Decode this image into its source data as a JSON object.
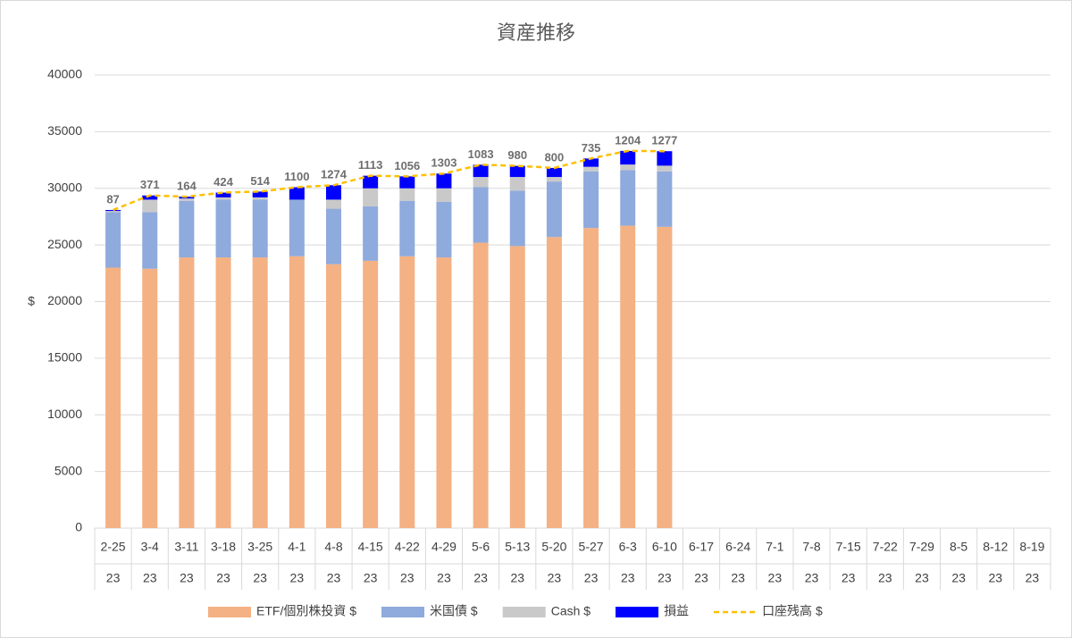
{
  "chart_data": {
    "type": "stacked_bar_line",
    "title": "資産推移",
    "y_label": "$",
    "categories": [
      "2-25",
      "3-4",
      "3-11",
      "3-18",
      "3-25",
      "4-1",
      "4-8",
      "4-15",
      "4-22",
      "4-29",
      "5-6",
      "5-13",
      "5-20",
      "5-27",
      "6-3",
      "6-10",
      "6-17",
      "6-24",
      "7-1",
      "7-8",
      "7-15",
      "7-22",
      "7-29",
      "8-5",
      "8-12",
      "8-19"
    ],
    "category_sublabels": [
      "23",
      "23",
      "23",
      "23",
      "23",
      "23",
      "23",
      "23",
      "23",
      "23",
      "23",
      "23",
      "23",
      "23",
      "23",
      "23",
      "23",
      "23",
      "23",
      "23",
      "23",
      "23",
      "23",
      "23",
      "23",
      "23"
    ],
    "ylim": [
      0,
      40000
    ],
    "yticks": [
      0,
      5000,
      10000,
      15000,
      20000,
      25000,
      30000,
      35000,
      40000
    ],
    "grid": true,
    "legend": "bottom",
    "series": [
      {
        "name": "ETF/個別株投資 $",
        "color": "#f4b183",
        "kind": "bar",
        "values": [
          23000,
          22900,
          23900,
          23900,
          23900,
          24000,
          23300,
          23600,
          24000,
          23900,
          25200,
          24900,
          25700,
          26500,
          26700,
          26600,
          null,
          null,
          null,
          null,
          null,
          null,
          null,
          null,
          null,
          null
        ]
      },
      {
        "name": "米国債 $",
        "color": "#8faadc",
        "kind": "bar",
        "values": [
          4900,
          5000,
          5000,
          5100,
          5100,
          5000,
          4900,
          4800,
          4900,
          4900,
          4900,
          4900,
          4900,
          5000,
          4900,
          4900,
          null,
          null,
          null,
          null,
          null,
          null,
          null,
          null,
          null,
          null
        ]
      },
      {
        "name": "Cash $",
        "color": "#c9c9c9",
        "kind": "bar",
        "values": [
          100,
          1100,
          200,
          200,
          200,
          0,
          800,
          1600,
          1100,
          1200,
          900,
          1200,
          400,
          400,
          500,
          500,
          null,
          null,
          null,
          null,
          null,
          null,
          null,
          null,
          null,
          null
        ]
      },
      {
        "name": "損益",
        "color": "#0000ff",
        "kind": "bar",
        "data_labels": true,
        "values": [
          87,
          371,
          164,
          424,
          514,
          1100,
          1274,
          1113,
          1056,
          1303,
          1083,
          980,
          800,
          735,
          1204,
          1277,
          null,
          null,
          null,
          null,
          null,
          null,
          null,
          null,
          null,
          null
        ]
      },
      {
        "name": "口座残高 $",
        "color": "#ffc000",
        "kind": "line",
        "dashed": true,
        "values": [
          28087,
          29371,
          29264,
          29624,
          29714,
          30100,
          30274,
          31113,
          31056,
          31303,
          32083,
          31980,
          31800,
          32635,
          33304,
          33277,
          null,
          null,
          null,
          null,
          null,
          null,
          null,
          null,
          null,
          null
        ]
      }
    ]
  }
}
